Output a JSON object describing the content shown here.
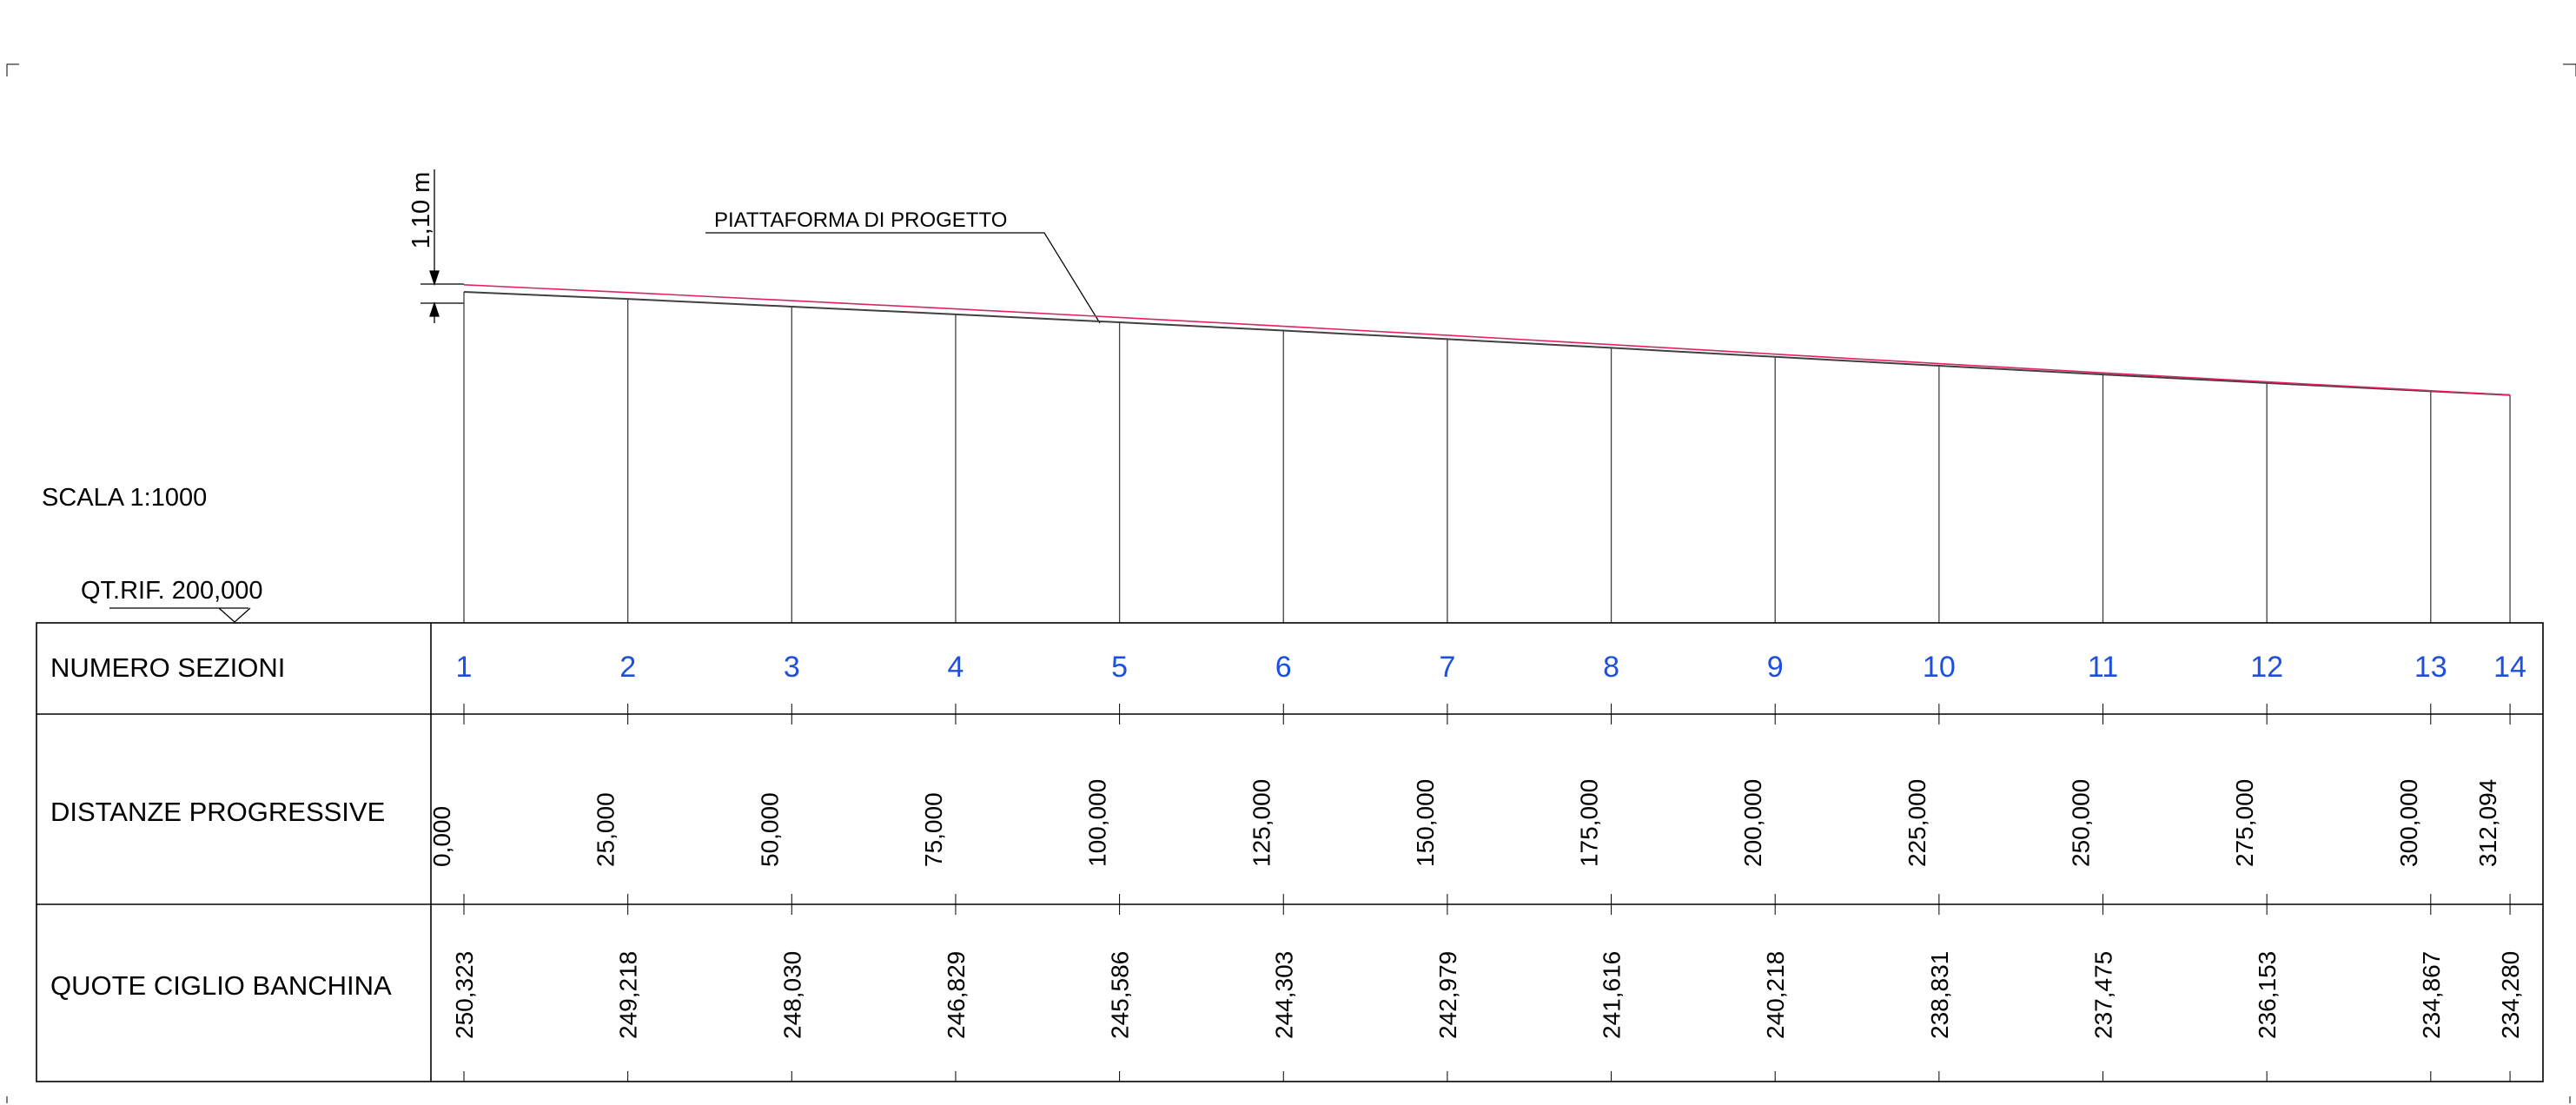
{
  "scale_label": "SCALA 1:1000",
  "reference_label": "QT.RIF. 200,000",
  "dimension_label": "1,10 m",
  "platform_label": "PIATTAFORMA DI PROGETTO",
  "colors": {
    "line": "#000000",
    "profile": "#404040",
    "design_line": "#e0245e",
    "section_number": "#1d4fe0"
  },
  "table": {
    "rows": [
      {
        "label": "NUMERO SEZIONI"
      },
      {
        "label": "DISTANZE PROGRESSIVE"
      },
      {
        "label": "QUOTE CIGLIO BANCHINA"
      }
    ]
  },
  "sections": [
    {
      "number": "1",
      "distance": "0,000",
      "elevation": "250,323"
    },
    {
      "number": "2",
      "distance": "25,000",
      "elevation": "249,218"
    },
    {
      "number": "3",
      "distance": "50,000",
      "elevation": "248,030"
    },
    {
      "number": "4",
      "distance": "75,000",
      "elevation": "246,829"
    },
    {
      "number": "5",
      "distance": "100,000",
      "elevation": "245,586"
    },
    {
      "number": "6",
      "distance": "125,000",
      "elevation": "244,303"
    },
    {
      "number": "7",
      "distance": "150,000",
      "elevation": "242,979"
    },
    {
      "number": "8",
      "distance": "175,000",
      "elevation": "241,616"
    },
    {
      "number": "9",
      "distance": "200,000",
      "elevation": "240,218"
    },
    {
      "number": "10",
      "distance": "225,000",
      "elevation": "238,831"
    },
    {
      "number": "11",
      "distance": "250,000",
      "elevation": "237,475"
    },
    {
      "number": "12",
      "distance": "275,000",
      "elevation": "236,153"
    },
    {
      "number": "13",
      "distance": "300,000",
      "elevation": "234,867"
    },
    {
      "number": "14",
      "distance": "312,094",
      "elevation": "234,280"
    }
  ]
}
